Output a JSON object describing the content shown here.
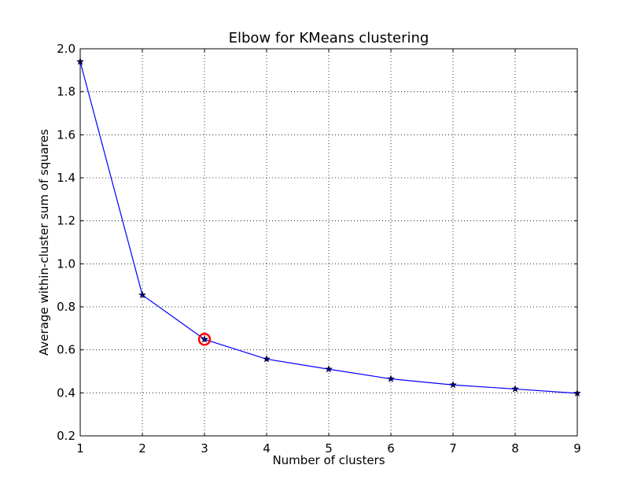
{
  "chart_data": {
    "type": "line",
    "title": "Elbow for KMeans clustering",
    "xlabel": "Number of clusters",
    "ylabel": "Average within-cluster sum of squares",
    "xlim": [
      1,
      9
    ],
    "ylim": [
      0.2,
      2.0
    ],
    "xticks": [
      "1",
      "2",
      "3",
      "4",
      "5",
      "6",
      "7",
      "8",
      "9"
    ],
    "yticks": [
      "0.2",
      "0.4",
      "0.6",
      "0.8",
      "1.0",
      "1.2",
      "1.4",
      "1.6",
      "1.8",
      "2.0"
    ],
    "grid": true,
    "x": [
      1,
      2,
      3,
      4,
      5,
      6,
      7,
      8,
      9
    ],
    "values": [
      1.94,
      0.855,
      0.649,
      0.557,
      0.51,
      0.465,
      0.437,
      0.418,
      0.398
    ],
    "line_color": "#0000ff",
    "marker": "star",
    "marker_color": "#000080",
    "highlight": {
      "x": 3,
      "y": 0.649,
      "color": "#ff0000",
      "shape": "circle"
    }
  }
}
